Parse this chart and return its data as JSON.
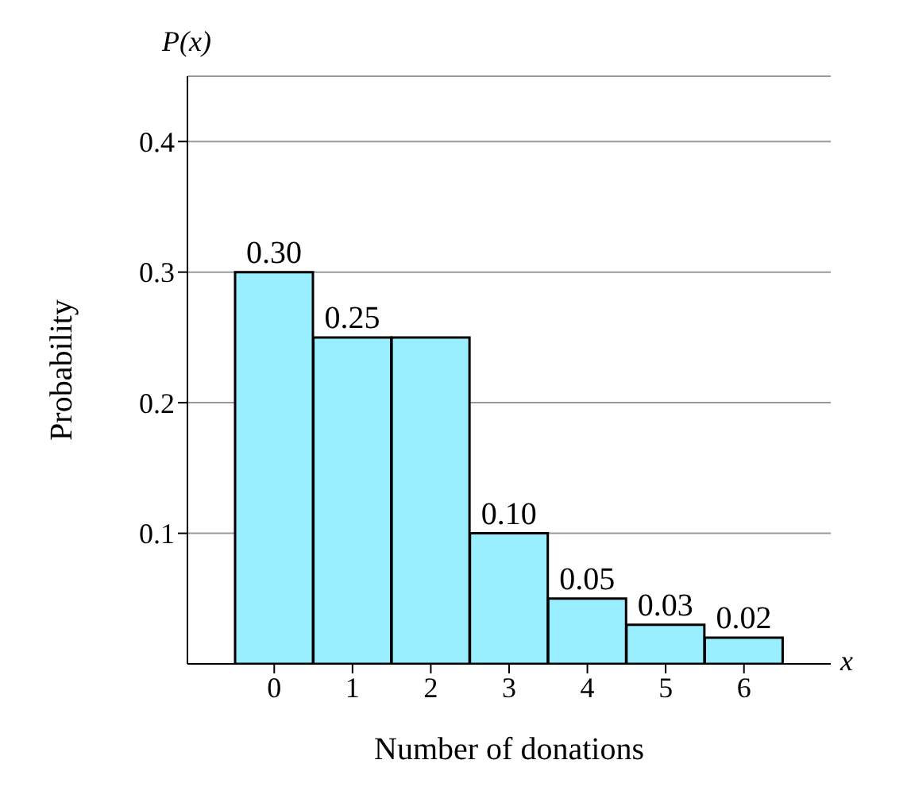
{
  "chart_data": {
    "type": "bar",
    "xlabel": "Number of donations",
    "ylabel": "Probability",
    "categories": [
      "0",
      "1",
      "2",
      "3",
      "4",
      "5",
      "6"
    ],
    "values": [
      0.3,
      0.25,
      0.25,
      0.1,
      0.05,
      0.03,
      0.02
    ],
    "value_labels": [
      "0.30",
      "0.25",
      null,
      "0.10",
      "0.05",
      "0.03",
      "0.02"
    ],
    "color": "#99eeff",
    "ylim": [
      0,
      0.45
    ],
    "yticks": [
      0.1,
      0.2,
      0.3,
      0.4
    ],
    "grid": "y",
    "annotations": [
      "P(x)",
      "x"
    ]
  }
}
